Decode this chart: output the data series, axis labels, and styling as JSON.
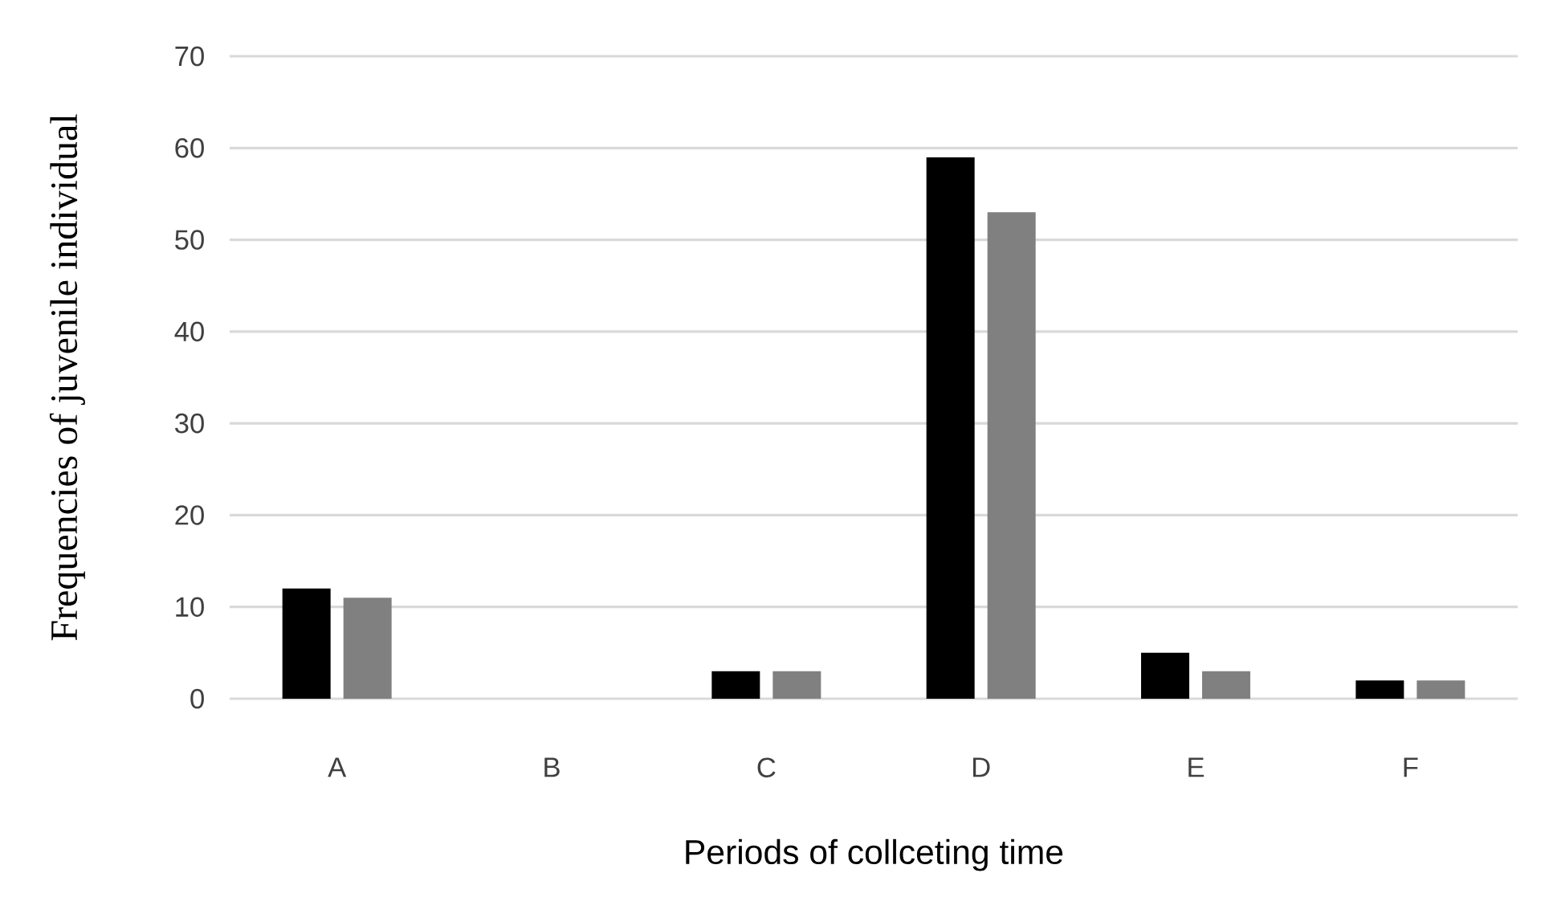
{
  "chart_data": {
    "type": "bar",
    "xlabel": "Periods of collceting time",
    "ylabel": "Frequencies of juvenile individual",
    "categories": [
      "A",
      "B",
      "C",
      "D",
      "E",
      "F"
    ],
    "series": [
      {
        "color": "#000000",
        "values": [
          12,
          0,
          3,
          59,
          5,
          2
        ]
      },
      {
        "color": "#808080",
        "values": [
          11,
          0,
          3,
          53,
          3,
          2
        ]
      }
    ],
    "ylim": [
      0,
      70
    ],
    "yticks": [
      0,
      10,
      20,
      30,
      40,
      50,
      60,
      70
    ],
    "grid": "y"
  }
}
